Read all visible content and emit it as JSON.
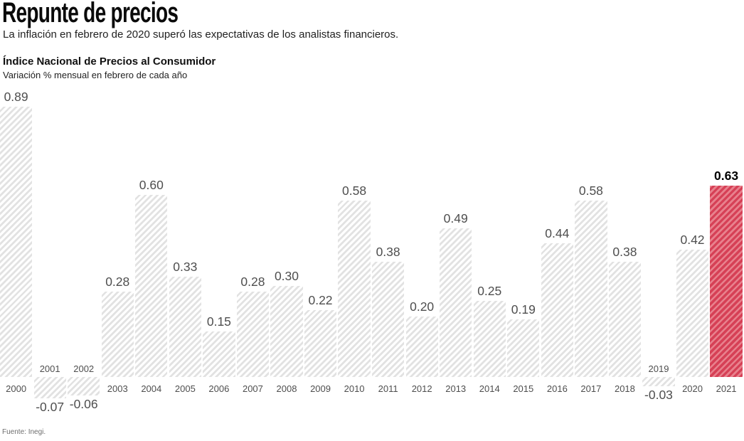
{
  "header": {
    "title": "Repunte de precios",
    "subtitle": "La inflación en febrero de 2020 superó las expectativas de los analistas financieros."
  },
  "source": "Fuente: Inegi.",
  "chart_data": {
    "type": "bar",
    "title": "Índice Nacional de Precios al Consumidor",
    "subtitle": "Variación % mensual en febrero de cada año",
    "xlabel": "",
    "ylabel": "Variación % mensual",
    "ylim": [
      -0.1,
      0.95
    ],
    "grid": false,
    "categories": [
      "2000",
      "2001",
      "2002",
      "2003",
      "2004",
      "2005",
      "2006",
      "2007",
      "2008",
      "2009",
      "2010",
      "2011",
      "2012",
      "2013",
      "2014",
      "2015",
      "2016",
      "2017",
      "2018",
      "2019",
      "2020",
      "2021"
    ],
    "values": [
      0.89,
      -0.07,
      -0.06,
      0.28,
      0.6,
      0.33,
      0.15,
      0.28,
      0.3,
      0.22,
      0.58,
      0.38,
      0.2,
      0.49,
      0.25,
      0.19,
      0.44,
      0.58,
      0.38,
      -0.03,
      0.42,
      0.63
    ],
    "value_labels": [
      "0.89",
      "-0.07",
      "-0.06",
      "0.28",
      "0.60",
      "0.33",
      "0.15",
      "0.28",
      "0.30",
      "0.22",
      "0.58",
      "0.38",
      "0.20",
      "0.49",
      "0.25",
      "0.19",
      "0.44",
      "0.58",
      "0.38",
      "-0.03",
      "0.42",
      "0.63"
    ],
    "highlight_index": 21,
    "highlight_color": "#d64056",
    "highlight_stripe_color": "#e8818d",
    "bar_background_color": "#ffffff",
    "bar_stripe_color": "#e2e2e2",
    "label_color": "#4e4e4e",
    "highlight_label_color": "#000000"
  }
}
